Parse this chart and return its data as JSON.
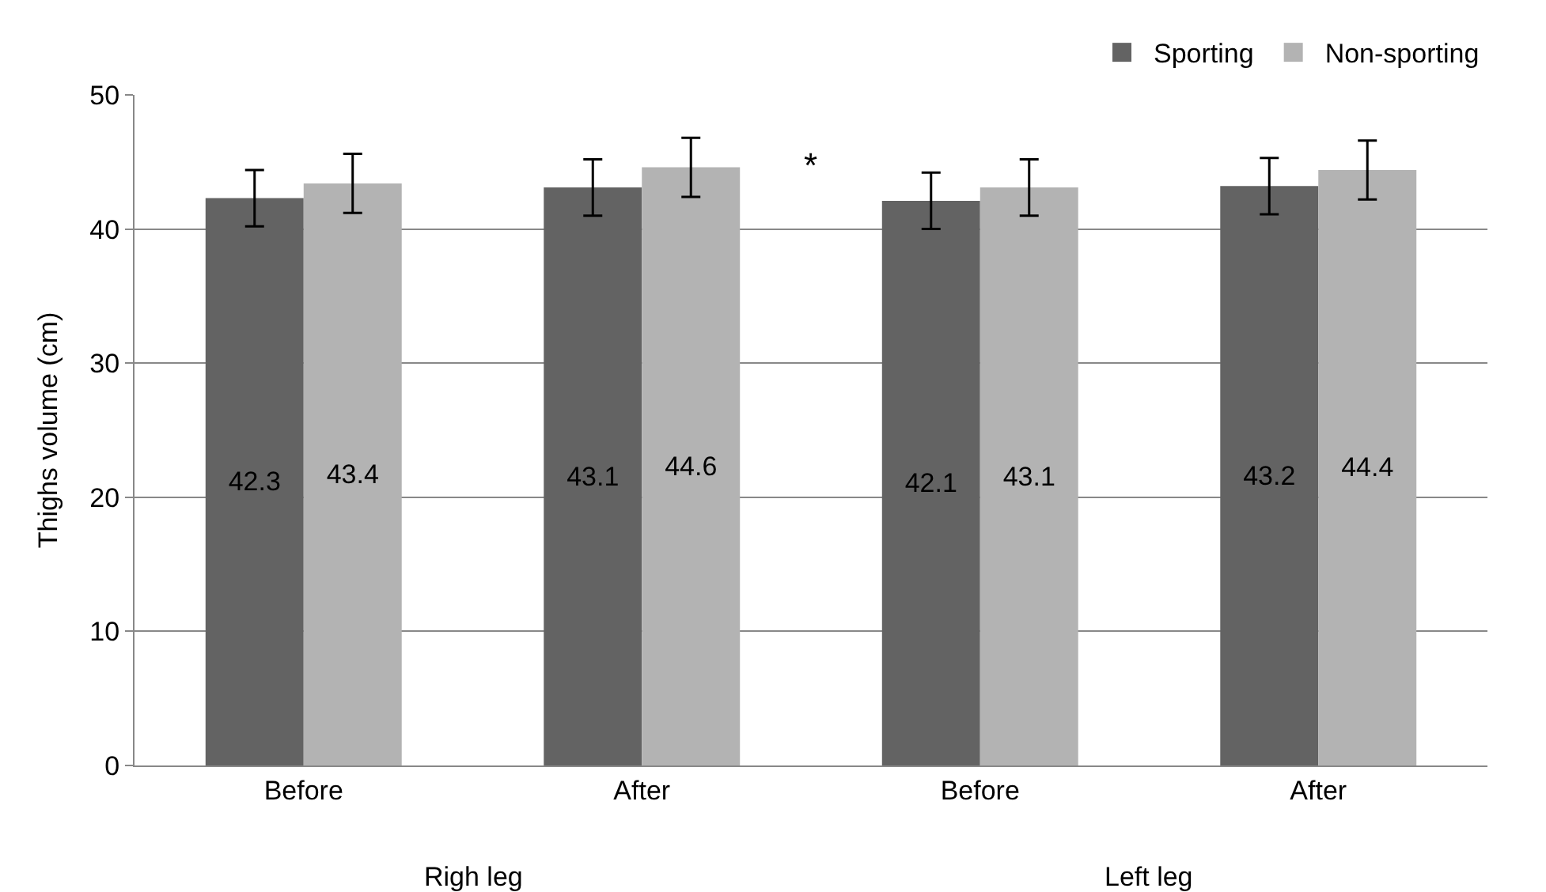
{
  "chart_data": {
    "type": "bar",
    "ylabel": "Thighs volume (cm)",
    "categories": [
      "Before",
      "After",
      "Before",
      "After"
    ],
    "series": [
      {
        "name": "Sporting",
        "color": "#636363",
        "values": [
          42.3,
          43.1,
          42.1,
          43.2
        ],
        "errors": [
          2.1,
          2.1,
          2.1,
          2.1
        ]
      },
      {
        "name": "Non-sporting",
        "color": "#b3b3b3",
        "values": [
          43.4,
          44.6,
          43.1,
          44.4
        ],
        "errors": [
          2.2,
          2.2,
          2.1,
          2.2
        ]
      }
    ],
    "ylim": [
      0,
      50
    ],
    "yticks": [
      0,
      10,
      20,
      30,
      40,
      50
    ],
    "grid": "y",
    "legend": "top right",
    "data_labels": true,
    "annotations": [
      "*",
      "Righ leg",
      "Left leg"
    ]
  }
}
